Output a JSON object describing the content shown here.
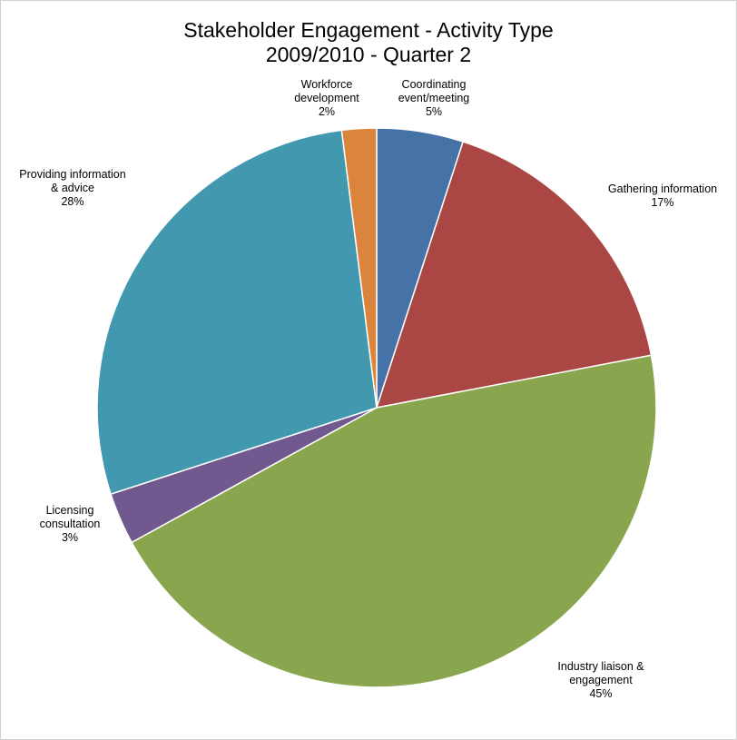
{
  "chart_data": {
    "type": "pie",
    "title": "Stakeholder Engagement - Activity Type",
    "subtitle": "2009/2010 - Quarter 2",
    "slices": [
      {
        "label_lines": [
          "Coordinating",
          "event/meeting"
        ],
        "value": 5,
        "value_label": "5%",
        "color": "#4572A7"
      },
      {
        "label_lines": [
          "Gathering information"
        ],
        "value": 17,
        "value_label": "17%",
        "color": "#AA4643"
      },
      {
        "label_lines": [
          "Industry liaison &",
          "engagement"
        ],
        "value": 45,
        "value_label": "45%",
        "color": "#89A54E"
      },
      {
        "label_lines": [
          "Licensing",
          "consultation"
        ],
        "value": 3,
        "value_label": "3%",
        "color": "#71588F"
      },
      {
        "label_lines": [
          "Providing information",
          "& advice"
        ],
        "value": 28,
        "value_label": "28%",
        "color": "#4198AF"
      },
      {
        "label_lines": [
          "Workforce",
          "development"
        ],
        "value": 2,
        "value_label": "2%",
        "color": "#DB843D"
      }
    ]
  }
}
